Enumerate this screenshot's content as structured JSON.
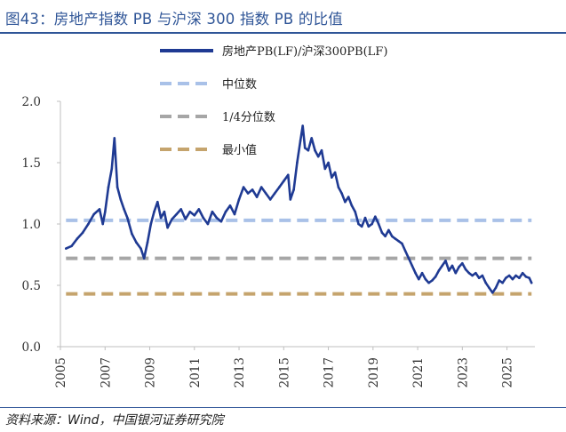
{
  "header": {
    "title": "图43：房地产指数 PB 与沪深 300 指数 PB 的比值"
  },
  "footer": {
    "source": "资料来源：Wind，中国银河证券研究院"
  },
  "colors": {
    "title": "#2f5597",
    "main_series": "#1f3a93",
    "median": "#a9c1e8",
    "quartile": "#a6a6a6",
    "minimum": "#c5a46d"
  },
  "chart_data": {
    "type": "line",
    "title": "",
    "xlabel": "",
    "ylabel": "",
    "x_range": [
      2005.0,
      2026.25
    ],
    "ylim": [
      0.0,
      2.0
    ],
    "yticks": [
      "0.0",
      "0.5",
      "1.0",
      "1.5",
      "2.0"
    ],
    "xticks": [
      "2005",
      "2007",
      "2009",
      "2011",
      "2013",
      "2015",
      "2017",
      "2019",
      "2021",
      "2023",
      "2025"
    ],
    "legend_position": "top",
    "series": [
      {
        "name": "房地产PB(LF)/沪深300PB(LF)",
        "color": "#1f3a93",
        "points": [
          [
            2005.25,
            0.8
          ],
          [
            2005.5,
            0.82
          ],
          [
            2005.75,
            0.88
          ],
          [
            2006.0,
            0.93
          ],
          [
            2006.25,
            1.0
          ],
          [
            2006.5,
            1.08
          ],
          [
            2006.75,
            1.12
          ],
          [
            2006.9,
            1.0
          ],
          [
            2007.0,
            1.1
          ],
          [
            2007.15,
            1.3
          ],
          [
            2007.3,
            1.45
          ],
          [
            2007.42,
            1.7
          ],
          [
            2007.55,
            1.3
          ],
          [
            2007.7,
            1.2
          ],
          [
            2007.85,
            1.12
          ],
          [
            2008.0,
            1.05
          ],
          [
            2008.2,
            0.92
          ],
          [
            2008.4,
            0.85
          ],
          [
            2008.6,
            0.8
          ],
          [
            2008.75,
            0.72
          ],
          [
            2008.9,
            0.85
          ],
          [
            2009.05,
            1.0
          ],
          [
            2009.2,
            1.1
          ],
          [
            2009.35,
            1.18
          ],
          [
            2009.5,
            1.05
          ],
          [
            2009.65,
            1.1
          ],
          [
            2009.8,
            0.97
          ],
          [
            2010.0,
            1.04
          ],
          [
            2010.2,
            1.08
          ],
          [
            2010.4,
            1.12
          ],
          [
            2010.6,
            1.04
          ],
          [
            2010.8,
            1.1
          ],
          [
            2011.0,
            1.07
          ],
          [
            2011.2,
            1.12
          ],
          [
            2011.4,
            1.05
          ],
          [
            2011.6,
            1.0
          ],
          [
            2011.8,
            1.1
          ],
          [
            2012.0,
            1.05
          ],
          [
            2012.2,
            1.02
          ],
          [
            2012.4,
            1.1
          ],
          [
            2012.6,
            1.15
          ],
          [
            2012.8,
            1.08
          ],
          [
            2013.0,
            1.2
          ],
          [
            2013.2,
            1.3
          ],
          [
            2013.4,
            1.25
          ],
          [
            2013.6,
            1.28
          ],
          [
            2013.8,
            1.22
          ],
          [
            2014.0,
            1.3
          ],
          [
            2014.2,
            1.25
          ],
          [
            2014.4,
            1.2
          ],
          [
            2014.6,
            1.25
          ],
          [
            2014.8,
            1.3
          ],
          [
            2015.0,
            1.35
          ],
          [
            2015.2,
            1.4
          ],
          [
            2015.3,
            1.2
          ],
          [
            2015.45,
            1.28
          ],
          [
            2015.6,
            1.5
          ],
          [
            2015.75,
            1.68
          ],
          [
            2015.85,
            1.8
          ],
          [
            2015.95,
            1.62
          ],
          [
            2016.1,
            1.6
          ],
          [
            2016.25,
            1.7
          ],
          [
            2016.4,
            1.6
          ],
          [
            2016.55,
            1.55
          ],
          [
            2016.7,
            1.6
          ],
          [
            2016.85,
            1.45
          ],
          [
            2017.0,
            1.5
          ],
          [
            2017.15,
            1.38
          ],
          [
            2017.3,
            1.42
          ],
          [
            2017.45,
            1.3
          ],
          [
            2017.6,
            1.25
          ],
          [
            2017.75,
            1.18
          ],
          [
            2017.9,
            1.22
          ],
          [
            2018.05,
            1.15
          ],
          [
            2018.2,
            1.1
          ],
          [
            2018.35,
            1.0
          ],
          [
            2018.5,
            0.98
          ],
          [
            2018.65,
            1.05
          ],
          [
            2018.8,
            0.98
          ],
          [
            2018.95,
            1.0
          ],
          [
            2019.1,
            1.06
          ],
          [
            2019.25,
            1.0
          ],
          [
            2019.4,
            0.93
          ],
          [
            2019.55,
            0.9
          ],
          [
            2019.7,
            0.95
          ],
          [
            2019.85,
            0.9
          ],
          [
            2020.0,
            0.88
          ],
          [
            2020.15,
            0.86
          ],
          [
            2020.3,
            0.84
          ],
          [
            2020.45,
            0.78
          ],
          [
            2020.6,
            0.72
          ],
          [
            2020.75,
            0.66
          ],
          [
            2020.9,
            0.6
          ],
          [
            2021.05,
            0.55
          ],
          [
            2021.2,
            0.6
          ],
          [
            2021.35,
            0.55
          ],
          [
            2021.5,
            0.52
          ],
          [
            2021.65,
            0.54
          ],
          [
            2021.8,
            0.57
          ],
          [
            2021.95,
            0.62
          ],
          [
            2022.1,
            0.66
          ],
          [
            2022.25,
            0.7
          ],
          [
            2022.4,
            0.62
          ],
          [
            2022.55,
            0.66
          ],
          [
            2022.7,
            0.6
          ],
          [
            2022.85,
            0.65
          ],
          [
            2023.0,
            0.68
          ],
          [
            2023.15,
            0.63
          ],
          [
            2023.3,
            0.6
          ],
          [
            2023.45,
            0.58
          ],
          [
            2023.6,
            0.6
          ],
          [
            2023.75,
            0.56
          ],
          [
            2023.9,
            0.58
          ],
          [
            2024.05,
            0.52
          ],
          [
            2024.2,
            0.48
          ],
          [
            2024.35,
            0.44
          ],
          [
            2024.5,
            0.48
          ],
          [
            2024.65,
            0.54
          ],
          [
            2024.8,
            0.52
          ],
          [
            2024.95,
            0.56
          ],
          [
            2025.1,
            0.58
          ],
          [
            2025.25,
            0.55
          ],
          [
            2025.4,
            0.58
          ],
          [
            2025.55,
            0.56
          ],
          [
            2025.7,
            0.6
          ],
          [
            2025.85,
            0.57
          ],
          [
            2026.0,
            0.56
          ],
          [
            2026.1,
            0.52
          ]
        ]
      },
      {
        "name": "中位数",
        "color": "#a9c1e8",
        "dashed": true,
        "value": 1.03
      },
      {
        "name": "1/4分位数",
        "color": "#a6a6a6",
        "dashed": true,
        "value": 0.72
      },
      {
        "name": "最小值",
        "color": "#c5a46d",
        "dashed": true,
        "value": 0.43
      }
    ]
  }
}
